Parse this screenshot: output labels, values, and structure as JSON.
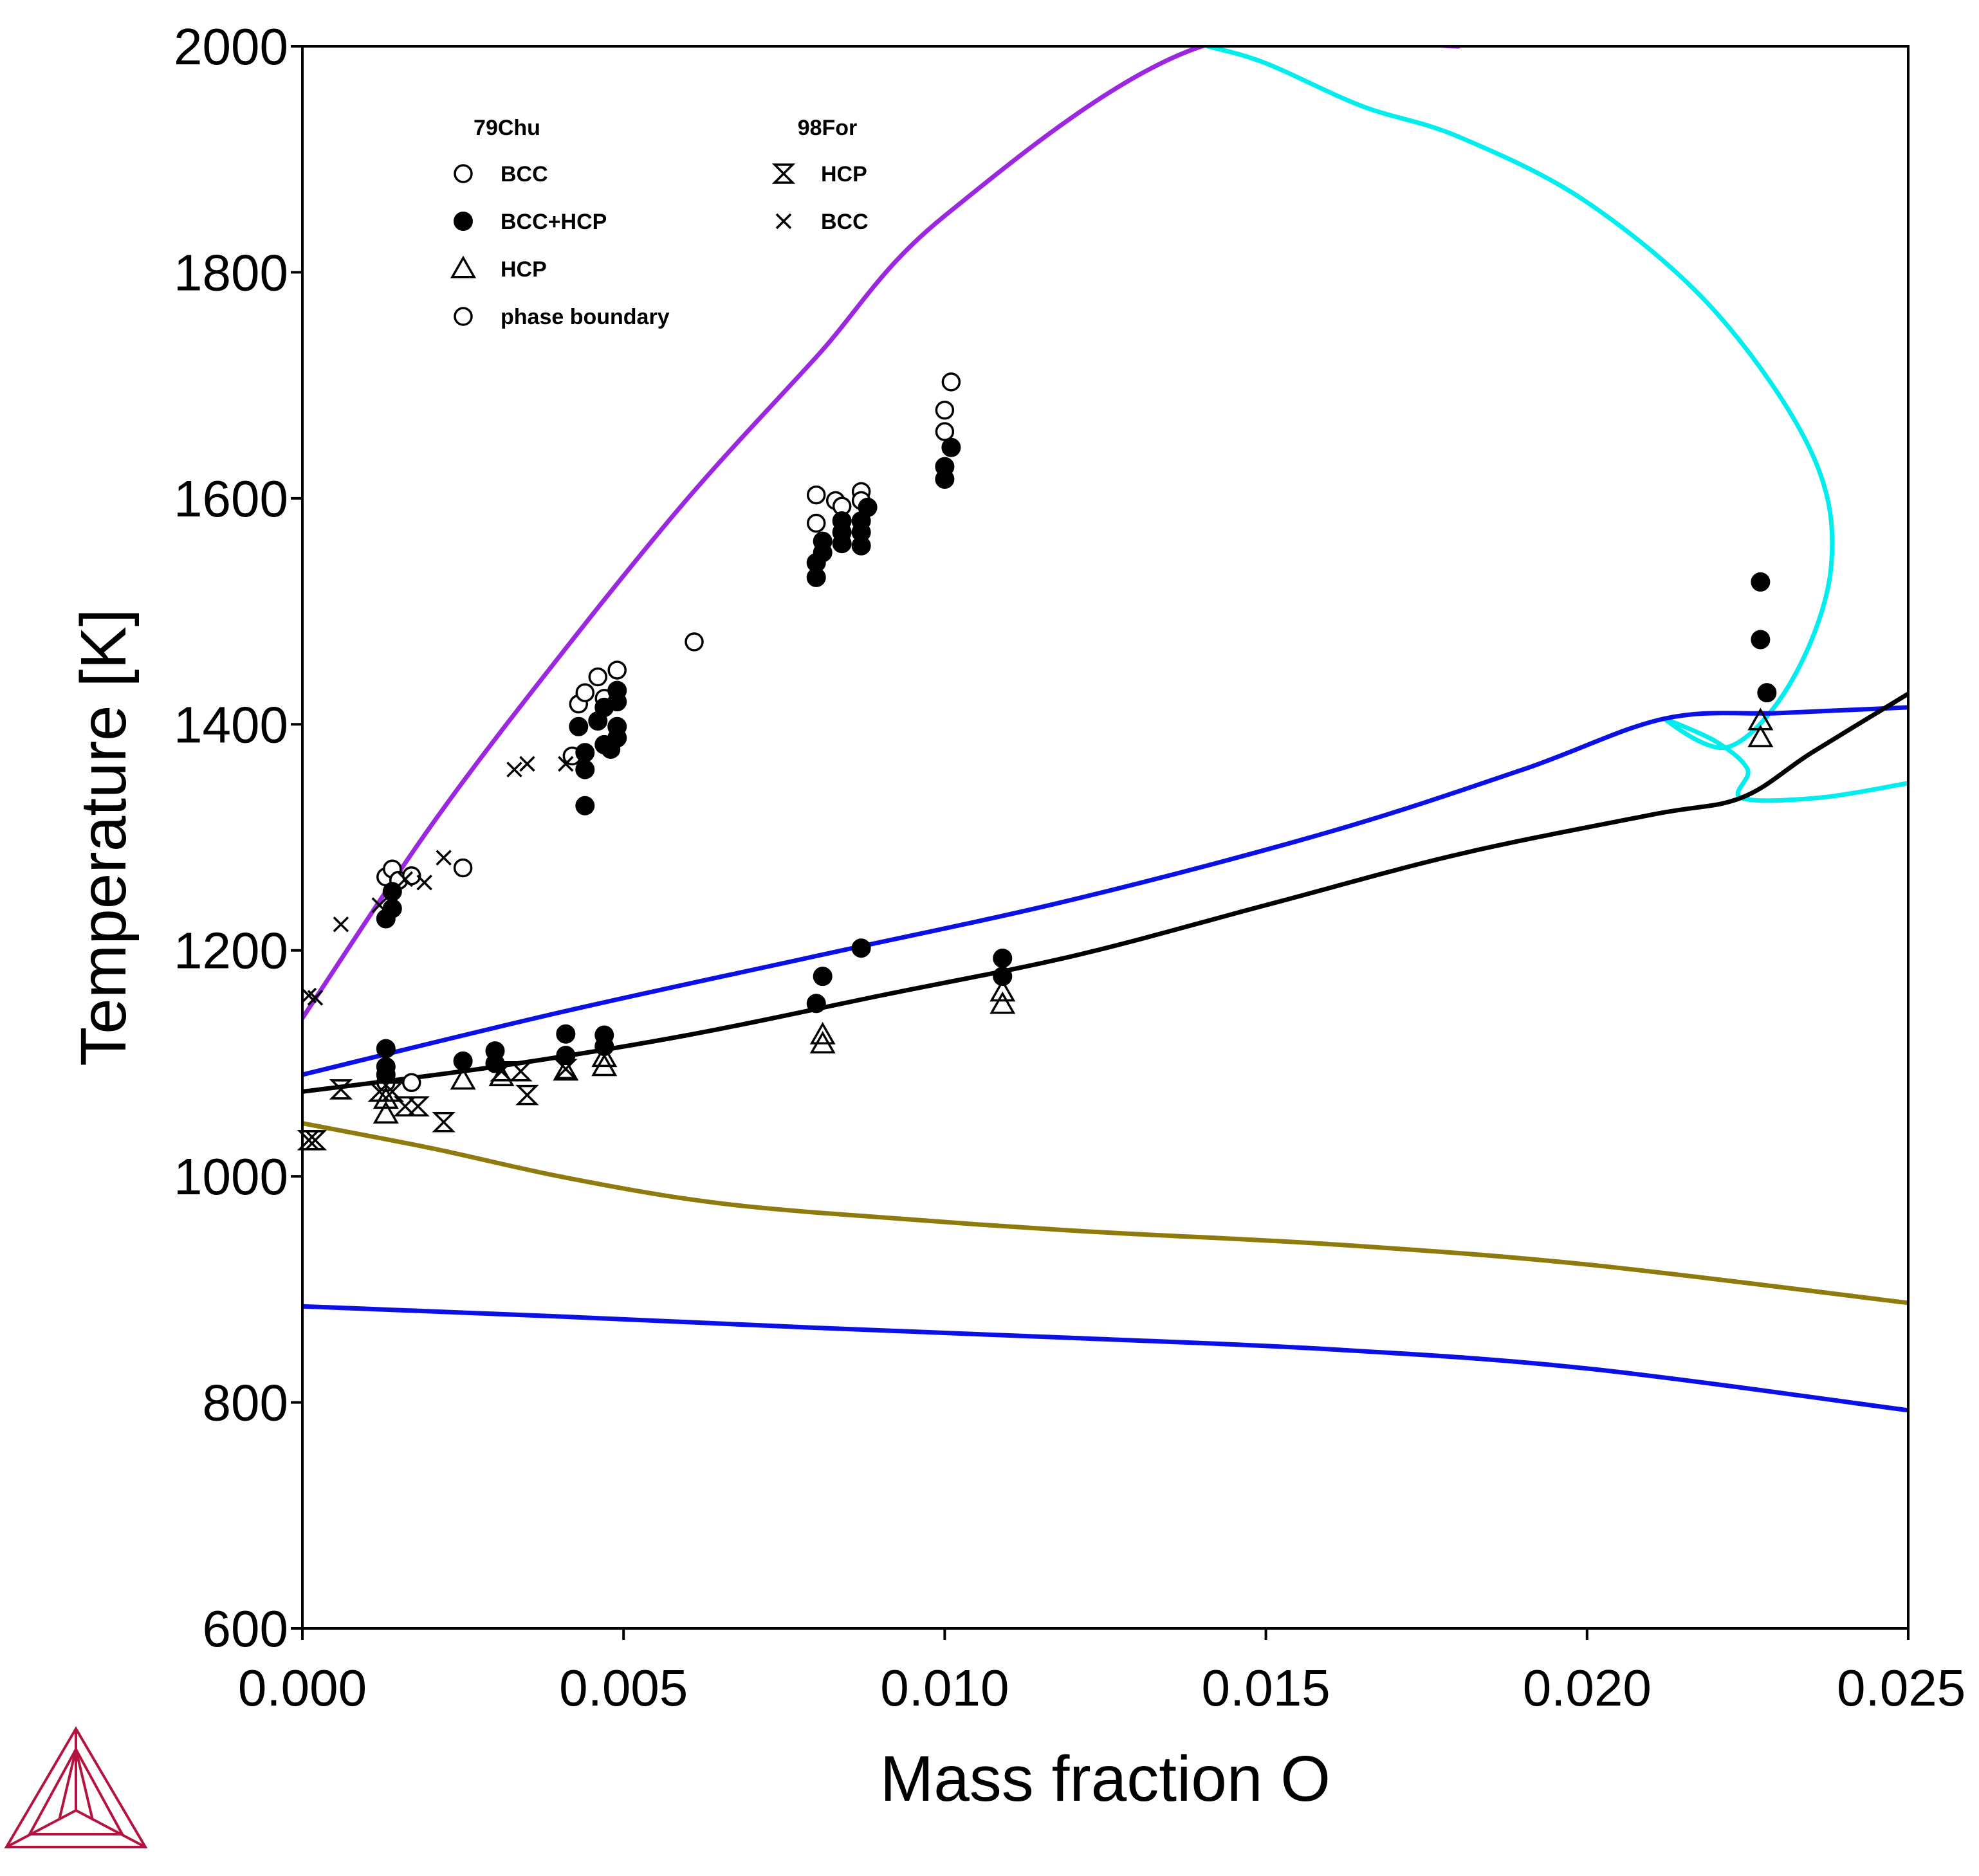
{
  "chart_data": {
    "type": "scatter",
    "title": "",
    "xlabel": "Mass fraction O",
    "ylabel": "Temperature [K]",
    "xlim": [
      0.0,
      0.025
    ],
    "ylim": [
      600,
      2000
    ],
    "x_ticks": [
      0.0,
      0.005,
      0.01,
      0.015,
      0.02,
      0.025
    ],
    "x_tick_labels": [
      "0.000",
      "0.005",
      "0.010",
      "0.015",
      "0.020",
      "0.025"
    ],
    "y_ticks": [
      600,
      800,
      1000,
      1200,
      1400,
      1600,
      1800,
      2000
    ],
    "y_tick_labels": [
      "600",
      "800",
      "1000",
      "1200",
      "1400",
      "1600",
      "1800",
      "2000"
    ],
    "grid": false,
    "legend_position": "top-left",
    "legend_groups": [
      {
        "title": "79Chu",
        "entries": [
          {
            "label": "BCC",
            "marker": "open-circle"
          },
          {
            "label": "BCC+HCP",
            "marker": "filled-circle"
          },
          {
            "label": "HCP",
            "marker": "open-triangle"
          },
          {
            "label": "phase boundary",
            "marker": "open-circle"
          }
        ]
      },
      {
        "title": "98For",
        "entries": [
          {
            "label": "HCP",
            "marker": "hourglass"
          },
          {
            "label": "BCC",
            "marker": "x-cross"
          }
        ]
      }
    ],
    "lines": [
      {
        "color": "#9b27e0",
        "points": [
          [
            0.0,
            1140
          ],
          [
            0.002,
            1310
          ],
          [
            0.004,
            1460
          ],
          [
            0.006,
            1600
          ],
          [
            0.008,
            1725
          ],
          [
            0.01,
            1850
          ],
          [
            0.014,
            2000
          ],
          [
            0.018,
            2000
          ]
        ]
      },
      {
        "color": "#00eeee",
        "points": [
          [
            0.0141,
            2000
          ],
          [
            0.015,
            1985
          ],
          [
            0.0165,
            1947
          ],
          [
            0.018,
            1920
          ],
          [
            0.02,
            1862
          ],
          [
            0.022,
            1765
          ],
          [
            0.0235,
            1640
          ],
          [
            0.0238,
            1540
          ],
          [
            0.0232,
            1440
          ],
          [
            0.0222,
            1380
          ],
          [
            0.0212,
            1405
          ],
          [
            0.022,
            1385
          ],
          [
            0.0225,
            1360
          ],
          [
            0.0224,
            1335
          ],
          [
            0.0236,
            1335
          ],
          [
            0.025,
            1348
          ]
        ]
      },
      {
        "color": "#0b10e6",
        "points": [
          [
            0.0,
            1090
          ],
          [
            0.004,
            1145
          ],
          [
            0.008,
            1195
          ],
          [
            0.012,
            1245
          ],
          [
            0.016,
            1305
          ],
          [
            0.019,
            1360
          ],
          [
            0.0212,
            1405
          ],
          [
            0.023,
            1410
          ],
          [
            0.025,
            1415
          ]
        ]
      },
      {
        "color": "#000000",
        "points": [
          [
            0.0,
            1075
          ],
          [
            0.003,
            1097
          ],
          [
            0.006,
            1125
          ],
          [
            0.009,
            1160
          ],
          [
            0.012,
            1195
          ],
          [
            0.015,
            1240
          ],
          [
            0.018,
            1285
          ],
          [
            0.021,
            1320
          ],
          [
            0.0224,
            1335
          ],
          [
            0.0235,
            1375
          ],
          [
            0.025,
            1427
          ]
        ]
      },
      {
        "color": "#8f7a0d",
        "points": [
          [
            0.0,
            1047
          ],
          [
            0.002,
            1025
          ],
          [
            0.004,
            1000
          ],
          [
            0.006,
            980
          ],
          [
            0.008,
            968
          ],
          [
            0.012,
            952
          ],
          [
            0.016,
            940
          ],
          [
            0.02,
            922
          ],
          [
            0.025,
            888
          ]
        ]
      },
      {
        "color": "#0b10e6",
        "points": [
          [
            0.0,
            885
          ],
          [
            0.004,
            876
          ],
          [
            0.008,
            866
          ],
          [
            0.012,
            857
          ],
          [
            0.016,
            847
          ],
          [
            0.02,
            830
          ],
          [
            0.025,
            793
          ]
        ]
      }
    ],
    "series": [
      {
        "name": "BCC",
        "group": "79Chu",
        "marker": "open-circle",
        "points": [
          [
            0.0013,
            1265
          ],
          [
            0.0014,
            1272
          ],
          [
            0.0015,
            1262
          ],
          [
            0.0017,
            1266
          ],
          [
            0.0025,
            1273
          ],
          [
            0.0042,
            1372
          ],
          [
            0.0043,
            1418
          ],
          [
            0.0044,
            1428
          ],
          [
            0.0046,
            1442
          ],
          [
            0.0047,
            1423
          ],
          [
            0.0049,
            1448
          ],
          [
            0.0061,
            1473
          ],
          [
            0.008,
            1603
          ],
          [
            0.008,
            1578
          ],
          [
            0.0083,
            1598
          ],
          [
            0.0084,
            1593
          ],
          [
            0.0087,
            1606
          ],
          [
            0.0087,
            1598
          ],
          [
            0.01,
            1678
          ],
          [
            0.0101,
            1703
          ],
          [
            0.01,
            1659
          ],
          [
            0.0017,
            1083
          ],
          [
            0.0013,
            1083
          ]
        ]
      },
      {
        "name": "BCC+HCP",
        "group": "79Chu",
        "marker": "filled-circle",
        "points": [
          [
            0.0013,
            1228
          ],
          [
            0.0014,
            1237
          ],
          [
            0.0014,
            1252
          ],
          [
            0.0013,
            1113
          ],
          [
            0.0013,
            1097
          ],
          [
            0.0013,
            1090
          ],
          [
            0.0025,
            1102
          ],
          [
            0.003,
            1111
          ],
          [
            0.003,
            1100
          ],
          [
            0.0041,
            1107
          ],
          [
            0.0041,
            1126
          ],
          [
            0.0047,
            1125
          ],
          [
            0.0047,
            1115
          ],
          [
            0.0043,
            1398
          ],
          [
            0.0044,
            1360
          ],
          [
            0.0044,
            1328
          ],
          [
            0.0044,
            1375
          ],
          [
            0.0046,
            1403
          ],
          [
            0.0047,
            1382
          ],
          [
            0.0047,
            1415
          ],
          [
            0.0048,
            1378
          ],
          [
            0.0049,
            1388
          ],
          [
            0.0049,
            1398
          ],
          [
            0.0049,
            1420
          ],
          [
            0.0049,
            1430
          ],
          [
            0.008,
            1530
          ],
          [
            0.008,
            1543
          ],
          [
            0.0081,
            1552
          ],
          [
            0.0081,
            1562
          ],
          [
            0.0084,
            1560
          ],
          [
            0.0084,
            1570
          ],
          [
            0.0084,
            1580
          ],
          [
            0.0087,
            1558
          ],
          [
            0.0087,
            1570
          ],
          [
            0.0087,
            1580
          ],
          [
            0.0088,
            1592
          ],
          [
            0.008,
            1153
          ],
          [
            0.0081,
            1177
          ],
          [
            0.0087,
            1202
          ],
          [
            0.01,
            1617
          ],
          [
            0.01,
            1628
          ],
          [
            0.0101,
            1645
          ],
          [
            0.0109,
            1193
          ],
          [
            0.0109,
            1177
          ],
          [
            0.0227,
            1526
          ],
          [
            0.0227,
            1475
          ],
          [
            0.0228,
            1428
          ]
        ]
      },
      {
        "name": "HCP",
        "group": "79Chu",
        "marker": "open-triangle",
        "points": [
          [
            0.0013,
            1055
          ],
          [
            0.0013,
            1068
          ],
          [
            0.0025,
            1085
          ],
          [
            0.0031,
            1088
          ],
          [
            0.0041,
            1093
          ],
          [
            0.0047,
            1097
          ],
          [
            0.0047,
            1105
          ],
          [
            0.0081,
            1117
          ],
          [
            0.0081,
            1125
          ],
          [
            0.0109,
            1152
          ],
          [
            0.0109,
            1163
          ],
          [
            0.0227,
            1403
          ],
          [
            0.0227,
            1388
          ]
        ]
      },
      {
        "name": "HCP",
        "group": "98For",
        "marker": "hourglass",
        "points": [
          [
            0.0001,
            1032
          ],
          [
            0.0002,
            1032
          ],
          [
            0.0006,
            1077
          ],
          [
            0.0012,
            1075
          ],
          [
            0.0014,
            1075
          ],
          [
            0.0016,
            1062
          ],
          [
            0.0018,
            1062
          ],
          [
            0.0022,
            1048
          ],
          [
            0.0031,
            1093
          ],
          [
            0.0034,
            1093
          ],
          [
            0.0035,
            1072
          ],
          [
            0.0041,
            1095
          ]
        ]
      },
      {
        "name": "BCC",
        "group": "98For",
        "marker": "x-cross",
        "points": [
          [
            0.0001,
            1160
          ],
          [
            0.0002,
            1158
          ],
          [
            0.0006,
            1223
          ],
          [
            0.0012,
            1240
          ],
          [
            0.0016,
            1263
          ],
          [
            0.0019,
            1260
          ],
          [
            0.0022,
            1282
          ],
          [
            0.0033,
            1360
          ],
          [
            0.0035,
            1365
          ],
          [
            0.0041,
            1365
          ]
        ]
      }
    ]
  },
  "logo": {
    "name": "thermo-calc-logo",
    "color": "#b5123f"
  }
}
